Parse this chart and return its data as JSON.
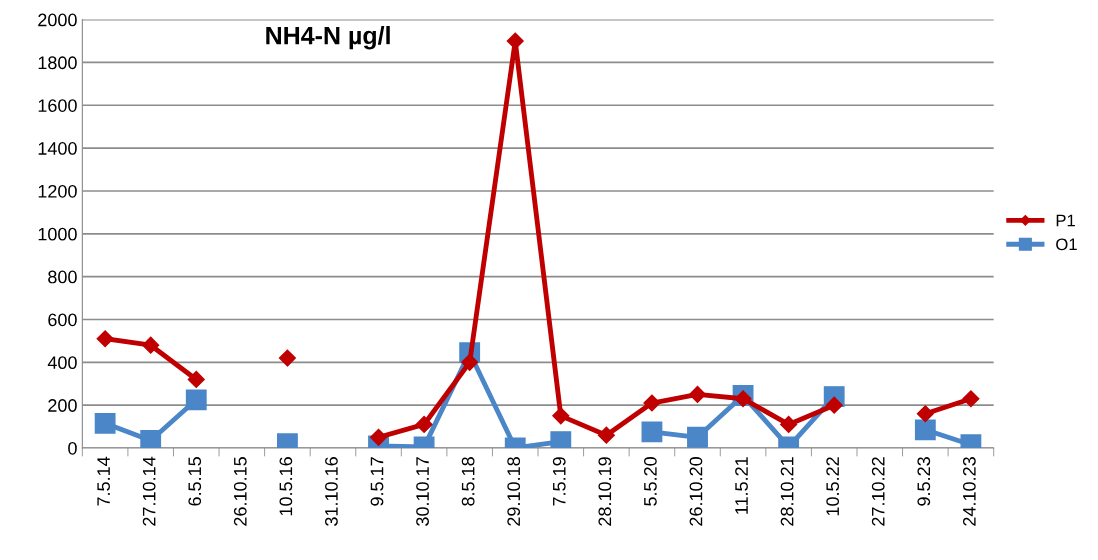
{
  "chart_data": {
    "type": "line",
    "title": "NH4-N µg/l",
    "categories": [
      "7.5.14",
      "27.10.14",
      "6.5.15",
      "26.10.15",
      "10.5.16",
      "31.10.16",
      "9.5.17",
      "30.10.17",
      "8.5.18",
      "29.10.18",
      "7.5.19",
      "28.10.19",
      "5.5.20",
      "26.10.20",
      "11.5.21",
      "28.10.21",
      "10.5.22",
      "27.10.22",
      "9.5.23",
      "24.10.23"
    ],
    "series": [
      {
        "name": "P1",
        "color": "#c00000",
        "marker": "diamond",
        "values": [
          510,
          480,
          320,
          null,
          420,
          null,
          50,
          110,
          400,
          1900,
          150,
          60,
          210,
          250,
          230,
          110,
          200,
          null,
          160,
          230
        ]
      },
      {
        "name": "O1",
        "color": "#4a86c8",
        "marker": "square",
        "values": [
          115,
          35,
          225,
          null,
          20,
          null,
          10,
          5,
          445,
          0,
          30,
          null,
          75,
          50,
          245,
          5,
          240,
          null,
          85,
          15
        ]
      }
    ],
    "ylim": [
      0,
      2000
    ],
    "yticks": [
      0,
      200,
      400,
      600,
      800,
      1000,
      1200,
      1400,
      1600,
      1800,
      2000
    ],
    "grid": "y",
    "legend": "right",
    "line_style": "solid"
  }
}
